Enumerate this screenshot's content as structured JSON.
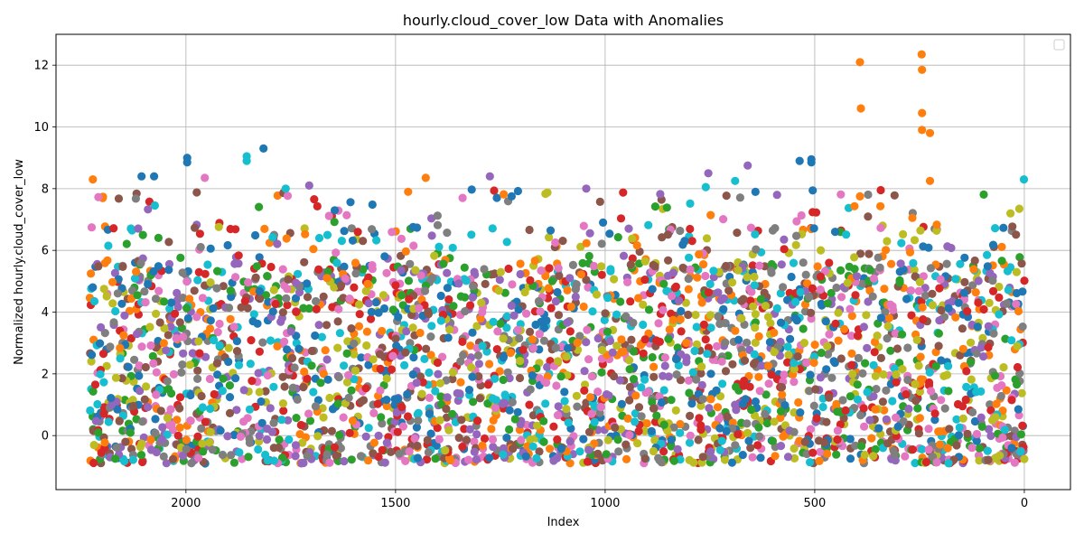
{
  "chart_data": {
    "type": "scatter",
    "title": "hourly.cloud_cover_low Data with Anomalies",
    "xlabel": "Index",
    "ylabel": "Normalized hourly.cloud_cover_low",
    "x_reversed": true,
    "xlim": [
      2310,
      -110
    ],
    "ylim": [
      -1.75,
      13.0
    ],
    "xticks": [
      2000,
      1500,
      1000,
      500,
      0
    ],
    "xtick_labels": [
      "2000",
      "1500",
      "1000",
      "500",
      "0"
    ],
    "yticks": [
      0,
      2,
      4,
      6,
      8,
      10,
      12
    ],
    "ytick_labels": [
      "0",
      "2",
      "4",
      "6",
      "8",
      "10",
      "12"
    ],
    "grid": true,
    "legend": "top-right (empty)",
    "palette": [
      "#1f77b4",
      "#ff7f0e",
      "#2ca02c",
      "#d62728",
      "#9467bd",
      "#8c564b",
      "#e377c2",
      "#7f7f7f",
      "#bcbd22",
      "#17becf"
    ],
    "x_range": [
      0,
      2230
    ],
    "bulk_range": [
      -0.9,
      5.6
    ],
    "anomalies": [
      {
        "x": 392,
        "y": 12.1,
        "color": "#ff7f0e"
      },
      {
        "x": 390,
        "y": 10.6,
        "color": "#ff7f0e"
      },
      {
        "x": 392,
        "y": 7.75,
        "color": "#ff7f0e"
      },
      {
        "x": 245,
        "y": 12.35,
        "color": "#ff7f0e"
      },
      {
        "x": 244,
        "y": 11.85,
        "color": "#ff7f0e"
      },
      {
        "x": 244,
        "y": 10.45,
        "color": "#ff7f0e"
      },
      {
        "x": 244,
        "y": 9.9,
        "color": "#ff7f0e"
      },
      {
        "x": 225,
        "y": 9.8,
        "color": "#ff7f0e"
      },
      {
        "x": 225,
        "y": 8.25,
        "color": "#ff7f0e"
      },
      {
        "x": 1815,
        "y": 9.3,
        "color": "#1f77b4"
      },
      {
        "x": 1997,
        "y": 9.0,
        "color": "#1f77b4"
      },
      {
        "x": 1997,
        "y": 8.85,
        "color": "#1f77b4"
      },
      {
        "x": 1855,
        "y": 9.05,
        "color": "#17becf"
      },
      {
        "x": 1855,
        "y": 8.9,
        "color": "#17becf"
      },
      {
        "x": 1005,
        "y": 6.9,
        "color": "#1f77b4"
      },
      {
        "x": 508,
        "y": 8.95,
        "color": "#1f77b4"
      },
      {
        "x": 508,
        "y": 8.85,
        "color": "#1f77b4"
      },
      {
        "x": 536,
        "y": 8.9,
        "color": "#1f77b4"
      },
      {
        "x": 660,
        "y": 8.75,
        "color": "#9467bd"
      },
      {
        "x": 754,
        "y": 8.5,
        "color": "#9467bd"
      },
      {
        "x": 1275,
        "y": 8.4,
        "color": "#9467bd"
      },
      {
        "x": 1428,
        "y": 8.35,
        "color": "#ff7f0e"
      },
      {
        "x": 1706,
        "y": 8.1,
        "color": "#9467bd"
      },
      {
        "x": 2222,
        "y": 8.3,
        "color": "#ff7f0e"
      },
      {
        "x": 1,
        "y": 8.3,
        "color": "#17becf"
      },
      {
        "x": 1045,
        "y": 8.0,
        "color": "#9467bd"
      },
      {
        "x": 1762,
        "y": 8.0,
        "color": "#17becf"
      },
      {
        "x": 2106,
        "y": 8.4,
        "color": "#1f77b4"
      },
      {
        "x": 2076,
        "y": 8.4,
        "color": "#1f77b4"
      },
      {
        "x": 1955,
        "y": 8.35,
        "color": "#e377c2"
      },
      {
        "x": 1223,
        "y": 7.75,
        "color": "#1f77b4"
      },
      {
        "x": 1645,
        "y": 7.3,
        "color": "#1f77b4"
      },
      {
        "x": 33,
        "y": 7.2,
        "color": "#bcbd22"
      },
      {
        "x": 12,
        "y": 7.35,
        "color": "#bcbd22"
      },
      {
        "x": 760,
        "y": 8.05,
        "color": "#17becf"
      },
      {
        "x": 690,
        "y": 8.25,
        "color": "#17becf"
      },
      {
        "x": 590,
        "y": 7.8,
        "color": "#9467bd"
      },
      {
        "x": 1340,
        "y": 7.7,
        "color": "#e377c2"
      },
      {
        "x": 1470,
        "y": 7.9,
        "color": "#ff7f0e"
      },
      {
        "x": 1590,
        "y": 6.6,
        "color": "#d62728"
      }
    ]
  }
}
